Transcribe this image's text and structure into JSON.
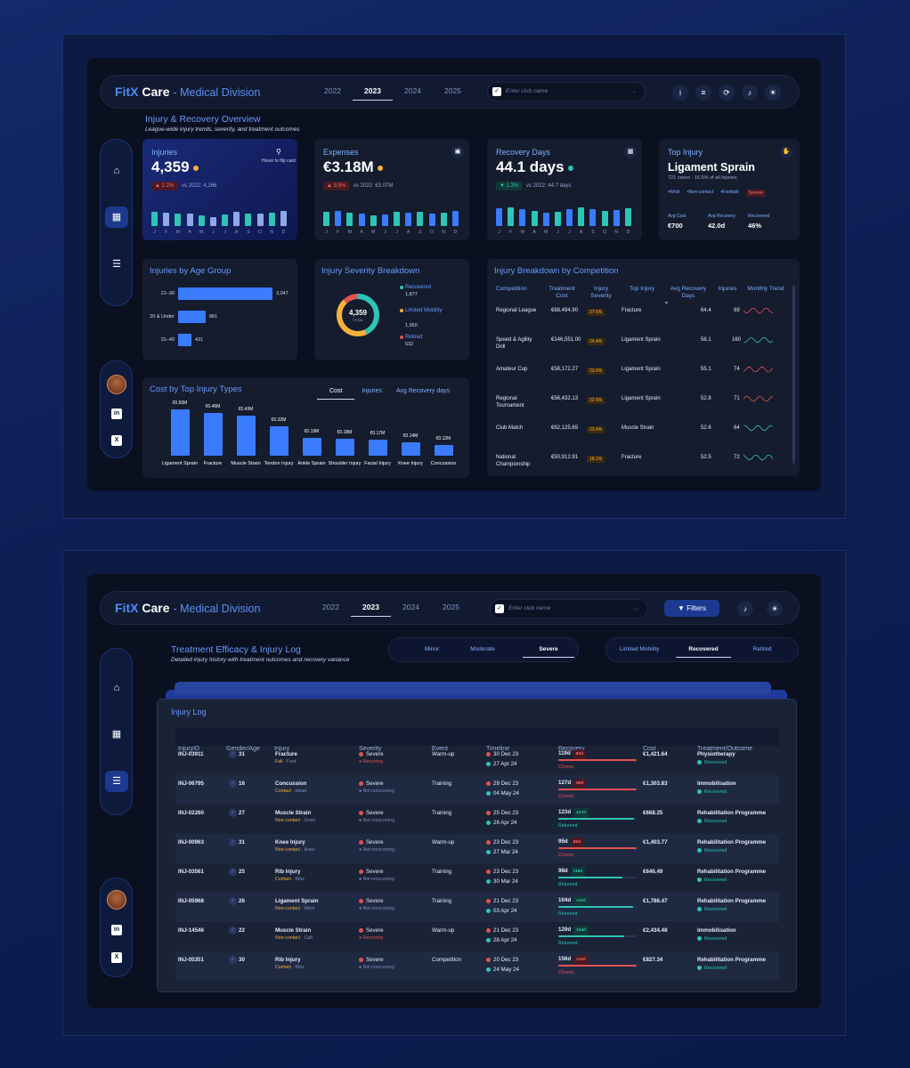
{
  "brand": {
    "name_a": "FitX",
    "name_b": " Care",
    "subtitle": "- Medical Division"
  },
  "years": [
    "2022",
    "2023",
    "2024",
    "2025"
  ],
  "active_year": "2023",
  "search": {
    "placeholder": "Enter club name"
  },
  "filters_label": "Filters",
  "overview": {
    "title": "Injury & Recovery Overview",
    "subtitle": "League-wide injury trends, severity, and treatment outcomes"
  },
  "months": [
    "J",
    "F",
    "M",
    "A",
    "M",
    "J",
    "J",
    "A",
    "S",
    "O",
    "N",
    "D"
  ],
  "kpis": [
    {
      "label": "Injuries",
      "value": "4,359",
      "dot": "#f5b23a",
      "badge": "▲ 2.2%",
      "vs": "vs 2022: 4,266",
      "hint": "Hover to flip card",
      "values": [
        62,
        58,
        55,
        52,
        45,
        38,
        50,
        60,
        52,
        55,
        58,
        65
      ]
    },
    {
      "label": "Expenses",
      "value": "€3.18M",
      "dot": "#f5b23a",
      "badge": "▲ 3.5%",
      "vs": "vs 2022: €3.07M",
      "values": [
        62,
        66,
        58,
        54,
        48,
        50,
        62,
        58,
        62,
        54,
        58,
        66
      ]
    },
    {
      "label": "Recovery Days",
      "value": "44.1 days",
      "dot": "#2ec4b6",
      "badge": "▼ 1.3%",
      "vs": "vs 2022: 44.7 days",
      "values": [
        78,
        82,
        72,
        66,
        58,
        60,
        72,
        80,
        74,
        66,
        70,
        78
      ]
    }
  ],
  "top_injury": {
    "label": "Top Injury",
    "name": "Ligament Sprain",
    "sub": "721 cases · 16.5% of all injuries",
    "tags": [
      "•Wrist",
      "•Non-contact",
      "•Football"
    ],
    "sev": "Severe",
    "stats": [
      {
        "k": "Avg Cost",
        "v": "€700"
      },
      {
        "k": "Avg Recovery",
        "v": "42.0d"
      },
      {
        "k": "Recovered",
        "v": "46%"
      }
    ]
  },
  "age_group": {
    "title": "Injuries by Age Group",
    "items": [
      {
        "label": "21–30",
        "value": 3047,
        "text": "3,047"
      },
      {
        "label": "20 & Under",
        "value": 881,
        "text": "881"
      },
      {
        "label": "31–40",
        "value": 431,
        "text": "431"
      }
    ]
  },
  "severity": {
    "title": "Injury Severity Breakdown",
    "total": "4,359",
    "total_label": "TOTAL",
    "items": [
      {
        "name": "Recovered",
        "count": "1,877",
        "pct": "43.1%",
        "value": 43.1,
        "color": "#2ec4b6"
      },
      {
        "name": "Limited Mobility",
        "count": "1,950",
        "pct": "44.7%",
        "value": 44.7,
        "color": "#f5b23a"
      },
      {
        "name": "Retired",
        "count": "532",
        "pct": "12.2%",
        "value": 12.2,
        "color": "#e0544f"
      }
    ]
  },
  "cost": {
    "title": "Cost by Top Injury Types",
    "tabs": [
      "Cost",
      "Injuries",
      "Avg Recovery days"
    ],
    "active_tab": "Cost",
    "items": [
      {
        "label": "Ligament Sprain",
        "value": 0.5,
        "text": "€0.50M"
      },
      {
        "label": "Fracture",
        "value": 0.46,
        "text": "€0.46M"
      },
      {
        "label": "Muscle Strain",
        "value": 0.43,
        "text": "€0.43M"
      },
      {
        "label": "Tendon Injury",
        "value": 0.32,
        "text": "€0.32M"
      },
      {
        "label": "Ankle Sprain",
        "value": 0.19,
        "text": "€0.19M"
      },
      {
        "label": "Shoulder Injury",
        "value": 0.18,
        "text": "€0.18M"
      },
      {
        "label": "Facial Injury",
        "value": 0.17,
        "text": "€0.17M"
      },
      {
        "label": "Knee Injury",
        "value": 0.14,
        "text": "€0.14M"
      },
      {
        "label": "Concussion",
        "value": 0.12,
        "text": "€0.12M"
      }
    ]
  },
  "competition": {
    "title": "Injury Breakdown by Competition",
    "headers": [
      "Competition",
      "Treatment Cost",
      "Injury Severity",
      "Top Injury",
      "Avg Recovery Days",
      "Injuries",
      "Monthly Trend"
    ],
    "rows": [
      {
        "name": "Regional League",
        "cost": "€68,494.90",
        "sev": "27.5%",
        "top": "Fracture",
        "days": "64.4",
        "inj": "69",
        "trend": "red"
      },
      {
        "name": "Speed & Agility Drill",
        "cost": "€146,551.00",
        "sev": "24.4%",
        "top": "Ligament Sprain",
        "days": "56.1",
        "inj": "160",
        "trend": "green"
      },
      {
        "name": "Amateur Cup",
        "cost": "€58,172.27",
        "sev": "23.0%",
        "top": "Ligament Sprain",
        "days": "55.1",
        "inj": "74",
        "trend": "red"
      },
      {
        "name": "Regional Tournament",
        "cost": "€56,432.13",
        "sev": "22.5%",
        "top": "Ligament Sprain",
        "days": "52.8",
        "inj": "71",
        "trend": "red"
      },
      {
        "name": "Club Match",
        "cost": "€62,125.69",
        "sev": "23.4%",
        "top": "Muscle Strain",
        "days": "52.6",
        "inj": "64",
        "trend": "green"
      },
      {
        "name": "National Championship",
        "cost": "€50,912.91",
        "sev": "18.1%",
        "top": "Fracture",
        "days": "52.5",
        "inj": "72",
        "trend": "green"
      }
    ]
  },
  "treatment": {
    "title": "Treatment Efficacy & Injury Log",
    "subtitle": "Detailed injury history with treatment outcomes and recovery variance",
    "sev_filters": [
      "Minor",
      "Moderate",
      "Severe"
    ],
    "sev_active": "Severe",
    "out_filters": [
      "Limited Mobility",
      "Recovered",
      "Retired"
    ],
    "out_active": "Recovered"
  },
  "log": {
    "title": "Injury Log",
    "headers": [
      "InjuryID",
      "Gender/Age",
      "Injury",
      "Severity",
      "Event",
      "Timeline",
      "Recovery",
      "Cost",
      "Treatment/Outcome"
    ],
    "rows": [
      {
        "id": "INJ-03911",
        "age": "31",
        "injury": "Fracture",
        "type": "Fall",
        "part": "Foot",
        "sev": "Severe",
        "recur": "Recurring",
        "event": "Warm-up",
        "start": "30 Dec 23",
        "end": "27 Apr 24",
        "rec": "119d",
        "tag": "90d",
        "status": "Chronic",
        "fill": 1.0,
        "cost": "€1,421.64",
        "treat": "Physiotherapy",
        "outcome": "Recovered"
      },
      {
        "id": "INJ-06795",
        "age": "16",
        "injury": "Concussion",
        "type": "Contact",
        "part": "Head",
        "sev": "Severe",
        "recur": "Not reoccurring",
        "event": "Training",
        "start": "29 Dec 23",
        "end": "04 May 24",
        "rec": "127d",
        "tag": "90d",
        "status": "Chronic",
        "fill": 1.0,
        "cost": "€1,303.83",
        "treat": "Immobilisation",
        "outcome": "Recovered"
      },
      {
        "id": "INJ-02260",
        "age": "27",
        "injury": "Muscle Strain",
        "type": "Non-contact",
        "part": "Groin",
        "sev": "Severe",
        "recur": "Not reoccurring",
        "event": "Training",
        "start": "25 Dec 23",
        "end": "26 Apr 24",
        "rec": "123d",
        "tag": "127d",
        "status": "Returned",
        "fill": 0.97,
        "cost": "€668.25",
        "treat": "Rehabilitation Programme",
        "outcome": "Recovered"
      },
      {
        "id": "INJ-00963",
        "age": "31",
        "injury": "Knee Injury",
        "type": "Non-contact",
        "part": "Knee",
        "sev": "Severe",
        "recur": "Not reoccurring",
        "event": "Warm-up",
        "start": "23 Dec 23",
        "end": "27 Mar 24",
        "rec": "95d",
        "tag": "86d",
        "status": "Chronic",
        "fill": 1.0,
        "cost": "€1,403.77",
        "treat": "Rehabilitation Programme",
        "outcome": "Recovered"
      },
      {
        "id": "INJ-03561",
        "age": "25",
        "injury": "Rib Injury",
        "type": "Contact",
        "part": "Ribs",
        "sev": "Severe",
        "recur": "Not reoccurring",
        "event": "Training",
        "start": "23 Dec 23",
        "end": "30 Mar 24",
        "rec": "98d",
        "tag": "119d",
        "status": "Returned",
        "fill": 0.82,
        "cost": "€646.49",
        "treat": "Rehabilitation Programme",
        "outcome": "Recovered"
      },
      {
        "id": "INJ-05968",
        "age": "26",
        "injury": "Ligament Sprain",
        "type": "Non-contact",
        "part": "Wrist",
        "sev": "Severe",
        "recur": "Not reoccurring",
        "event": "Training",
        "start": "21 Dec 23",
        "end": "03 Apr 24",
        "rec": "104d",
        "tag": "110d",
        "status": "Returned",
        "fill": 0.95,
        "cost": "€1,786.47",
        "treat": "Rehabilitation Programme",
        "outcome": "Recovered"
      },
      {
        "id": "INJ-14546",
        "age": "22",
        "injury": "Muscle Strain",
        "type": "Non-contact",
        "part": "Calf",
        "sev": "Severe",
        "recur": "Recurring",
        "event": "Warm-up",
        "start": "21 Dec 23",
        "end": "28 Apr 24",
        "rec": "129d",
        "tag": "154d",
        "status": "Returned",
        "fill": 0.84,
        "cost": "€2,434.48",
        "treat": "Immobilisation",
        "outcome": "Recovered"
      },
      {
        "id": "INJ-05351",
        "age": "30",
        "injury": "Rib Injury",
        "type": "Contact",
        "part": "Ribs",
        "sev": "Severe",
        "recur": "Not reoccurring",
        "event": "Competition",
        "start": "20 Dec 23",
        "end": "24 May 24",
        "rec": "156d",
        "tag": "110d",
        "status": "Chronic",
        "fill": 1.0,
        "cost": "€827.34",
        "treat": "Rehabilitation Programme",
        "outcome": "Recovered"
      }
    ]
  }
}
